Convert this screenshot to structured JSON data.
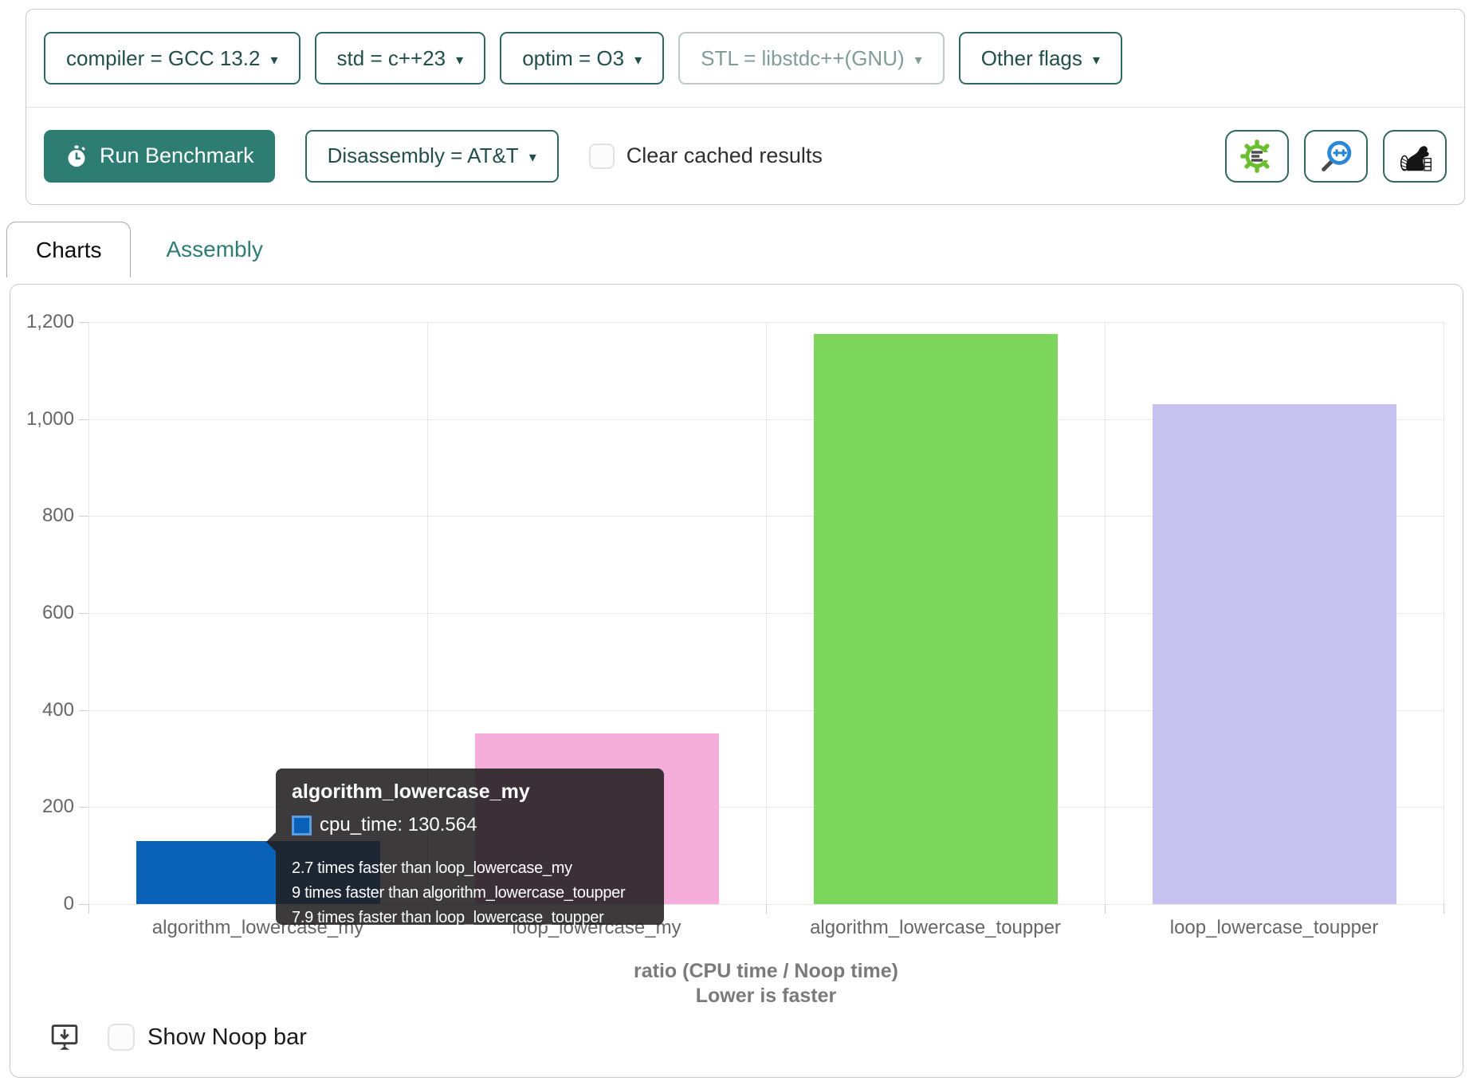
{
  "toolbar": {
    "caret": "▾",
    "dropdowns": [
      {
        "label": "compiler = GCC 13.2",
        "disabled": false
      },
      {
        "label": "std = c++23",
        "disabled": false
      },
      {
        "label": "optim = O3",
        "disabled": false
      },
      {
        "label": "STL = libstdc++(GNU)",
        "disabled": true
      },
      {
        "label": "Other flags",
        "disabled": false
      }
    ],
    "run_button": "Run Benchmark",
    "disassembly_dropdown": "Disassembly = AT&T",
    "clear_cached_label": "Clear cached results",
    "icon_buttons": [
      "compiler-explorer-gear",
      "cpp-insights-magnifier",
      "build-bench-beaver"
    ]
  },
  "tabs": [
    {
      "label": "Charts",
      "active": true
    },
    {
      "label": "Assembly",
      "active": false
    }
  ],
  "chart_data": {
    "type": "bar",
    "series_name": "cpu_time",
    "categories": [
      "algorithm_lowercase_my",
      "loop_lowercase_my",
      "algorithm_lowercase_toupper",
      "loop_lowercase_toupper"
    ],
    "values": [
      130.564,
      352.5,
      1175.1,
      1031.5
    ],
    "colors": [
      "#0a62b8",
      "#f4aed9",
      "#7cd65c",
      "#c7c2f0"
    ],
    "ylim": [
      0,
      1200
    ],
    "yticks": [
      0,
      200,
      400,
      600,
      800,
      1000,
      1200
    ],
    "ytick_labels": [
      "0",
      "200",
      "400",
      "600",
      "800",
      "1,000",
      "1,200"
    ],
    "xlabel_line1": "ratio (CPU time / Noop time)",
    "xlabel_line2": "Lower is faster",
    "grid": true,
    "legend": "none"
  },
  "tooltip": {
    "title": "algorithm_lowercase_my",
    "value_line": "cpu_time: 130.564",
    "swatch_color": "#0a62b8",
    "comparisons": [
      "2.7 times faster than loop_lowercase_my",
      "9 times faster than algorithm_lowercase_toupper",
      "7.9 times faster than loop_lowercase_toupper"
    ]
  },
  "footer": {
    "show_noop_label": "Show Noop bar"
  },
  "colors": {
    "accent_teal": "#2e7d72",
    "accent_text": "#234f4a",
    "tooltip_bg": "rgba(32,29,31,0.87)",
    "grid_line": "#e7e7e7",
    "tick_text": "#666666"
  }
}
